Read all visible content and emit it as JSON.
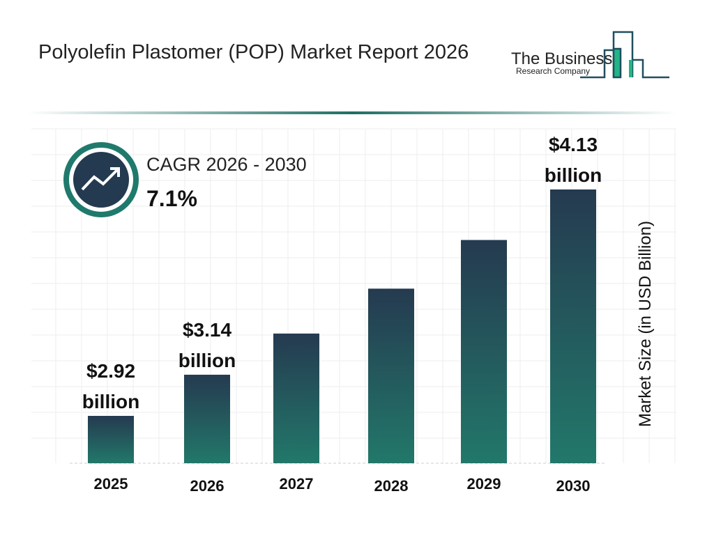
{
  "header": {
    "title": "Polyolefin Plastomer (POP) Market Report 2026"
  },
  "logo": {
    "line1": "The Business",
    "line2": "Research Company"
  },
  "cagr": {
    "label": "CAGR 2026 - 2030",
    "value": "7.1%",
    "icon": "trending-up-icon"
  },
  "colors": {
    "bar_top": "#253a50",
    "bar_bottom": "#22786a",
    "accent": "#1f7a6c"
  },
  "chart_data": {
    "type": "bar",
    "categories": [
      "2025",
      "2026",
      "2027",
      "2028",
      "2029",
      "2030"
    ],
    "values": [
      2.92,
      3.14,
      3.36,
      3.6,
      3.86,
      4.13
    ],
    "data_labels": [
      {
        "index": 0,
        "line1": "$2.92",
        "line2": "billion"
      },
      {
        "index": 1,
        "line1": "$3.14",
        "line2": "billion"
      },
      {
        "index": 5,
        "line1": "$4.13",
        "line2": "billion"
      }
    ],
    "ylabel": "Market Size (in USD Billion)",
    "grid": true
  }
}
